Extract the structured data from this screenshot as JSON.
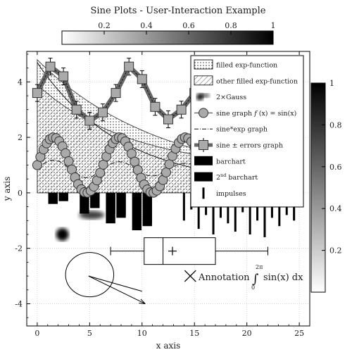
{
  "chart_data": {
    "type": "line",
    "title": "Sine Plots - User-Interaction Example",
    "xlabel": "x axis",
    "ylabel": "y axis",
    "xlim": [
      -1,
      26
    ],
    "ylim": [
      -4.8,
      5.1
    ],
    "xticks": [
      "0",
      "5",
      "10",
      "15",
      "20",
      "25"
    ],
    "yticks": [
      "-4",
      "-2",
      "0",
      "2",
      "4"
    ],
    "grid": true,
    "legend_position": "top-right",
    "legend": [
      {
        "label": "filled exp-function",
        "swatch": "dots"
      },
      {
        "label": "other filled exp-function",
        "swatch": "hatch"
      },
      {
        "label": "2×Gauss",
        "swatch": "gauss"
      },
      {
        "label": "sine graph f (x) = sin(x)",
        "swatch": "circle-line"
      },
      {
        "label": "sine*exp graph",
        "swatch": "dashdot"
      },
      {
        "label": "sine ± errors graph",
        "swatch": "square-line"
      },
      {
        "label": "barchart",
        "swatch": "bar"
      },
      {
        "label": "2nd barchart",
        "swatch": "bar"
      },
      {
        "label": "impulses",
        "swatch": "impulse"
      }
    ],
    "legend_parts": {
      "sine_graph_lead": "sine graph ",
      "sine_graph_f": "f",
      "sine_graph_tail": " (x) = sin(x)",
      "barchart2_num": "2",
      "barchart2_sup": "nd",
      "barchart2_tail": " barchart"
    },
    "series": [
      {
        "name": "sine ± errors graph",
        "type": "line-markers-errorbars",
        "marker": "square",
        "x": [
          0,
          1.25,
          2.5,
          3.75,
          5,
          6.25,
          7.5,
          8.75,
          10,
          11.25,
          12.5,
          13.75,
          15,
          16.25,
          17.5
        ],
        "y": [
          3.6,
          4.55,
          4.2,
          3.0,
          2.6,
          2.9,
          3.6,
          4.55,
          4.1,
          3.1,
          2.65,
          3.0,
          3.6,
          4.55,
          4.2
        ]
      },
      {
        "name": "sine graph f (x) = sin(x)",
        "type": "line-markers",
        "marker": "circle",
        "formula": "1 + sin(x)",
        "x_range": [
          0,
          25
        ],
        "step": 0.3
      },
      {
        "name": "sine*exp graph",
        "type": "dashdot",
        "formula": "0.85 + 0.35*sin(x)*exp(-x/30)",
        "x_range": [
          0,
          25
        ]
      },
      {
        "name": "filled exp-function",
        "type": "filled-area",
        "pattern": "dots",
        "formula": "4.5*exp(-x/12)+0.3",
        "x_range": [
          0,
          25
        ]
      },
      {
        "name": "other filled exp-function",
        "type": "filled-area",
        "pattern": "hatch",
        "formula": "3.1*exp(-x/9)+0.8",
        "x_range": [
          0,
          25
        ]
      },
      {
        "name": "decay line",
        "type": "line",
        "formula": "4.5*exp(-x/8)+0.2",
        "x_range": [
          0,
          25
        ]
      },
      {
        "name": "barchart",
        "type": "bar",
        "color": "#000000",
        "x": [
          1.5,
          2.5,
          4.5,
          5.5,
          7,
          8,
          9.5,
          10.5
        ],
        "y": [
          -0.4,
          -0.3,
          -0.75,
          -0.55,
          -1.1,
          -0.9,
          -1.35,
          -1.2
        ]
      },
      {
        "name": "2nd barchart",
        "type": "bar",
        "color": "#000000",
        "x": [
          1.5,
          2.5,
          4.5,
          5.5,
          7,
          8,
          9.5,
          10.5
        ],
        "y": [
          -0.3,
          -0.25,
          -0.5,
          -0.45,
          -0.75,
          -0.8,
          -1.0,
          -1.1
        ]
      },
      {
        "name": "impulses",
        "type": "impulse",
        "x": [
          14,
          14.7,
          15.4,
          16.1,
          16.8,
          17.5,
          18.2,
          18.9,
          19.6,
          20.3,
          21,
          21.7,
          22.4,
          23.1,
          23.8,
          24.5
        ],
        "y": [
          -1.0,
          -0.6,
          -1.3,
          -0.8,
          -1.5,
          -0.9,
          -1.1,
          -1.4,
          -0.7,
          -1.5,
          -1.0,
          -1.6,
          -0.9,
          -1.2,
          -0.8,
          -1.0
        ]
      }
    ],
    "boxplot": {
      "min": 7,
      "q1": 10.2,
      "median": 12,
      "mean": 12.9,
      "q3": 17,
      "max": 22,
      "y": -2.1
    },
    "annotation_text": "Annotation",
    "integral": {
      "upper": "2π",
      "lower": "0",
      "expr": "sin(x) dx"
    },
    "annotation_marker_x": 14.6,
    "annotation_marker_y": -3.0,
    "ellipse": {
      "cx": 5,
      "cy": -2.95,
      "rx": 2.3,
      "ry": 0.8
    },
    "arrow": {
      "x1": 4.9,
      "y1": -3.0,
      "x2": 10.3,
      "y2": -4.0
    },
    "gauss_blob": {
      "x": 2.4,
      "y": -1.5
    },
    "colorbar_top": {
      "ticks": [
        "0.2",
        "0.4",
        "0.6",
        "0.8",
        "1"
      ]
    },
    "colorbar_right": {
      "ticks": [
        "0.2",
        "0.4",
        "0.6",
        "0.8",
        "1"
      ]
    }
  }
}
